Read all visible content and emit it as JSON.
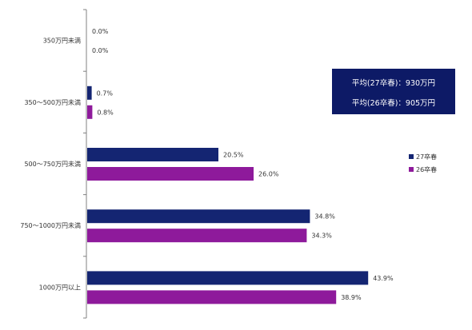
{
  "chart_data": {
    "type": "bar",
    "orientation": "horizontal",
    "categories": [
      "350万円未満",
      "350～500万円未満",
      "500～750万円未満",
      "750～1000万円未満",
      "1000万円以上"
    ],
    "series": [
      {
        "name": "27卒春",
        "color": "#142572",
        "values": [
          0.0,
          0.7,
          20.5,
          34.8,
          43.9
        ],
        "labels": [
          "0.0%",
          "0.7%",
          "20.5%",
          "34.8%",
          "43.9%"
        ]
      },
      {
        "name": "26卒春",
        "color": "#8e1a9b",
        "values": [
          0.0,
          0.8,
          26.0,
          34.3,
          38.9
        ],
        "labels": [
          "0.0%",
          "0.8%",
          "26.0%",
          "34.3%",
          "38.9%"
        ]
      }
    ],
    "xlim": [
      0,
      50
    ],
    "grid": false,
    "legend": "right"
  },
  "average_box": {
    "line1": "平均(27卒春)：930万円",
    "line2": "平均(26卒春)：905万円",
    "color": "#0d1a66"
  }
}
